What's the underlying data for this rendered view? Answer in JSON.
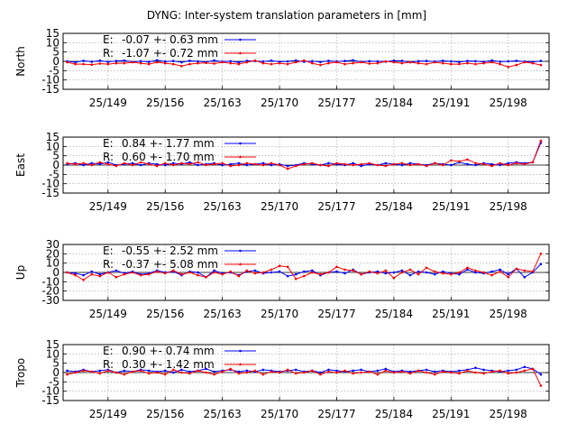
{
  "title": "DYNG: Inter-system translation parameters in [mm]",
  "colors": {
    "E": "#0000ff",
    "R": "#ff0000",
    "axis": "#000000",
    "grid": "#a0a0a0"
  },
  "x_ticks": [
    "25/149",
    "25/156",
    "25/163",
    "25/170",
    "25/177",
    "25/184",
    "25/191",
    "25/198"
  ],
  "chart_data": [
    {
      "type": "line",
      "ylabel": "North",
      "x_day_range": [
        143.5,
        203
      ],
      "x_tick_days": [
        149,
        156,
        163,
        170,
        177,
        184,
        191,
        198
      ],
      "x_tick_labels": [
        "25/149",
        "25/156",
        "25/163",
        "25/170",
        "25/177",
        "25/184",
        "25/191",
        "25/198"
      ],
      "ylim": [
        -15,
        15
      ],
      "y_ticks": [
        15,
        10,
        5,
        0,
        -5,
        -10,
        -15
      ],
      "grid": true,
      "legend_position": "top-left",
      "series": [
        {
          "name": "E:",
          "stat": "-0.07 +- 0.63 mm",
          "x": [
            144,
            145,
            146,
            147,
            148,
            149,
            150,
            151,
            152,
            153,
            154,
            155,
            156,
            157,
            158,
            159,
            160,
            161,
            162,
            163,
            164,
            165,
            166,
            167,
            168,
            169,
            170,
            171,
            172,
            173,
            174,
            175,
            176,
            177,
            178,
            179,
            180,
            181,
            182,
            183,
            184,
            185,
            186,
            187,
            188,
            189,
            190,
            191,
            192,
            193,
            194,
            195,
            196,
            197,
            198,
            199,
            200,
            201,
            202
          ],
          "values": [
            0,
            -0.5,
            0.3,
            -0.2,
            0.4,
            -0.3,
            0.2,
            0.5,
            -0.4,
            0.1,
            -0.3,
            0.6,
            -0.1,
            0.2,
            -0.5,
            0.3,
            0,
            -0.4,
            0.5,
            -0.2,
            0.1,
            -0.6,
            0.3,
            0.2,
            -0.1,
            0.4,
            -0.3,
            0,
            0.5,
            -0.2,
            0.1,
            -0.4,
            0.3,
            -0.1,
            0.2,
            0.6,
            -0.3,
            0.1,
            0,
            -0.2,
            0.4,
            0.3,
            -0.5,
            0.1,
            0.2,
            -0.1,
            0.3,
            0,
            -0.4,
            0.2,
            0.1,
            -0.3,
            0.5,
            -0.2,
            0,
            0.3,
            -0.1,
            -0.4,
            0.2
          ]
        },
        {
          "name": "R:",
          "stat": "-1.07 +- 0.72 mm",
          "x": [
            144,
            145,
            146,
            147,
            148,
            149,
            150,
            151,
            152,
            153,
            154,
            155,
            156,
            157,
            158,
            159,
            160,
            161,
            162,
            163,
            164,
            165,
            166,
            167,
            168,
            169,
            170,
            171,
            172,
            173,
            174,
            175,
            176,
            177,
            178,
            179,
            180,
            181,
            182,
            183,
            184,
            185,
            186,
            187,
            188,
            189,
            190,
            191,
            192,
            193,
            194,
            195,
            196,
            197,
            198,
            199,
            200,
            201,
            202
          ],
          "values": [
            -0.5,
            -1.5,
            -1.5,
            -1.8,
            -1.2,
            -1.5,
            -1,
            -1,
            -0.5,
            -1,
            -1.5,
            -0.5,
            -1,
            -1.5,
            -2.5,
            -1.5,
            -1,
            -0.8,
            -1.2,
            -0.5,
            -1,
            -1.5,
            -0.5,
            0.5,
            -1,
            -1.5,
            -1,
            -1.5,
            -0.5,
            0.5,
            -1,
            -2,
            -1,
            -0.5,
            -1.5,
            -1,
            -0.5,
            -1.2,
            -1,
            0,
            -0.5,
            -1,
            -0.5,
            -1,
            -1.5,
            -0.5,
            -1,
            -1.5,
            -1.5,
            -1,
            -1.5,
            -1,
            -0.5,
            -1.5,
            -3,
            -2,
            -0.5,
            -1,
            -2
          ]
        }
      ]
    },
    {
      "type": "line",
      "ylabel": "East",
      "x_day_range": [
        143.5,
        203
      ],
      "x_tick_days": [
        149,
        156,
        163,
        170,
        177,
        184,
        191,
        198
      ],
      "x_tick_labels": [
        "25/149",
        "25/156",
        "25/163",
        "25/170",
        "25/177",
        "25/184",
        "25/191",
        "25/198"
      ],
      "ylim": [
        -15,
        15
      ],
      "y_ticks": [
        15,
        10,
        5,
        0,
        -5,
        -10,
        -15
      ],
      "grid": true,
      "legend_position": "top-left",
      "series": [
        {
          "name": "E:",
          "stat": "0.84 +- 1.77 mm",
          "x": [
            144,
            145,
            146,
            147,
            148,
            149,
            150,
            151,
            152,
            153,
            154,
            155,
            156,
            157,
            158,
            159,
            160,
            161,
            162,
            163,
            164,
            165,
            166,
            167,
            168,
            169,
            170,
            171,
            172,
            173,
            174,
            175,
            176,
            177,
            178,
            179,
            180,
            181,
            182,
            183,
            184,
            185,
            186,
            187,
            188,
            189,
            190,
            191,
            192,
            193,
            194,
            195,
            196,
            197,
            198,
            199,
            200,
            201,
            202
          ],
          "values": [
            0.5,
            1,
            0,
            1,
            0.5,
            1.5,
            0,
            0.5,
            1,
            0,
            1,
            0.5,
            0,
            1,
            0.5,
            1.5,
            0,
            0.5,
            1,
            0,
            0.5,
            1,
            0,
            0.5,
            1,
            0,
            0.5,
            -0.5,
            0,
            1,
            0.5,
            0,
            1,
            0.5,
            0,
            1,
            -0.5,
            0.5,
            0,
            1,
            0.5,
            0,
            1,
            0.5,
            0,
            1,
            0.5,
            0,
            1.5,
            0.5,
            0,
            1,
            0.5,
            0,
            1,
            1.5,
            1,
            1.5,
            12
          ]
        },
        {
          "name": "R:",
          "stat": "0.60 +- 1.70 mm",
          "x": [
            144,
            145,
            146,
            147,
            148,
            149,
            150,
            151,
            152,
            153,
            154,
            155,
            156,
            157,
            158,
            159,
            160,
            161,
            162,
            163,
            164,
            165,
            166,
            167,
            168,
            169,
            170,
            171,
            172,
            173,
            174,
            175,
            176,
            177,
            178,
            179,
            180,
            181,
            182,
            183,
            184,
            185,
            186,
            187,
            188,
            189,
            190,
            191,
            192,
            193,
            194,
            195,
            196,
            197,
            198,
            199,
            200,
            201,
            202
          ],
          "values": [
            1,
            0.5,
            1,
            0,
            1.5,
            0.5,
            -0.5,
            1,
            0,
            1.5,
            0.5,
            -0.5,
            1,
            0,
            1,
            0.5,
            1.5,
            0,
            0.5,
            1,
            -0.5,
            0,
            1,
            0.5,
            0,
            1,
            0,
            -2,
            -0.5,
            0.5,
            1,
            0,
            -0.5,
            1,
            0.5,
            0,
            0.5,
            1,
            0,
            -0.5,
            0.5,
            1,
            0,
            0.5,
            -0.5,
            1,
            0,
            2.5,
            2,
            3,
            1,
            0.5,
            -0.5,
            1,
            0,
            1,
            0.5,
            1.5,
            13
          ]
        }
      ]
    },
    {
      "type": "line",
      "ylabel": "Up",
      "x_day_range": [
        143.5,
        203
      ],
      "x_tick_days": [
        149,
        156,
        163,
        170,
        177,
        184,
        191,
        198
      ],
      "x_tick_labels": [
        "25/149",
        "25/156",
        "25/163",
        "25/170",
        "25/177",
        "25/184",
        "25/191",
        "25/198"
      ],
      "ylim": [
        -30,
        30
      ],
      "y_ticks": [
        30,
        20,
        10,
        0,
        -10,
        -20,
        -30
      ],
      "grid": true,
      "legend_position": "top-left",
      "series": [
        {
          "name": "E:",
          "stat": "-0.55 +- 2.52 mm",
          "x": [
            144,
            145,
            146,
            147,
            148,
            149,
            150,
            151,
            152,
            153,
            154,
            155,
            156,
            157,
            158,
            159,
            160,
            161,
            162,
            163,
            164,
            165,
            166,
            167,
            168,
            169,
            170,
            171,
            172,
            173,
            174,
            175,
            176,
            177,
            178,
            179,
            180,
            181,
            182,
            183,
            184,
            185,
            186,
            187,
            188,
            189,
            190,
            191,
            192,
            193,
            194,
            195,
            196,
            197,
            198,
            199,
            200,
            201,
            202
          ],
          "values": [
            0,
            -1,
            -3,
            1,
            -2,
            0,
            2,
            -1,
            1,
            -2,
            -1,
            2,
            0,
            1,
            -3,
            1,
            0,
            -5,
            2,
            -1,
            0,
            -3,
            1,
            2,
            -1,
            0,
            1,
            -4,
            -2,
            1,
            2,
            -3,
            0,
            1,
            -1,
            3,
            -2,
            0,
            1,
            -1,
            0,
            2,
            -3,
            1,
            0,
            -2,
            1,
            -1,
            -2,
            3,
            0,
            -1,
            1,
            3,
            -2,
            4,
            -5,
            0,
            9
          ]
        },
        {
          "name": "R:",
          "stat": "-0.37 +- 5.08 mm",
          "x": [
            144,
            145,
            146,
            147,
            148,
            149,
            150,
            151,
            152,
            153,
            154,
            155,
            156,
            157,
            158,
            159,
            160,
            161,
            162,
            163,
            164,
            165,
            166,
            167,
            168,
            169,
            170,
            171,
            172,
            173,
            174,
            175,
            176,
            177,
            178,
            179,
            180,
            181,
            182,
            183,
            184,
            185,
            186,
            187,
            188,
            189,
            190,
            191,
            192,
            193,
            194,
            195,
            196,
            197,
            198,
            199,
            200,
            201,
            202
          ],
          "values": [
            0,
            -3,
            -8,
            -2,
            -4,
            0,
            -5,
            -2,
            0,
            -3,
            -2,
            1,
            -1,
            2,
            -2,
            0,
            -3,
            -5,
            0,
            -2,
            1,
            -4,
            2,
            -1,
            0,
            3,
            7,
            6,
            -7,
            -4,
            0,
            -2,
            0,
            6,
            3,
            2,
            -2,
            1,
            -1,
            2,
            -6,
            0,
            3,
            -2,
            5,
            1,
            -1,
            -2,
            0,
            5,
            2,
            0,
            -3,
            1,
            -5,
            4,
            2,
            1,
            20
          ]
        }
      ]
    },
    {
      "type": "line",
      "ylabel": "Tropo",
      "x_day_range": [
        143.5,
        203
      ],
      "x_tick_days": [
        149,
        156,
        163,
        170,
        177,
        184,
        191,
        198
      ],
      "x_tick_labels": [
        "25/149",
        "25/156",
        "25/163",
        "25/170",
        "25/177",
        "25/184",
        "25/191",
        "25/198"
      ],
      "ylim": [
        -15,
        15
      ],
      "y_ticks": [
        15,
        10,
        5,
        0,
        -5,
        -10,
        -15
      ],
      "grid": true,
      "legend_position": "top-left",
      "series": [
        {
          "name": "E:",
          "stat": "0.90 +- 0.74 mm",
          "x": [
            144,
            145,
            146,
            147,
            148,
            149,
            150,
            151,
            152,
            153,
            154,
            155,
            156,
            157,
            158,
            159,
            160,
            161,
            162,
            163,
            164,
            165,
            166,
            167,
            168,
            169,
            170,
            171,
            172,
            173,
            174,
            175,
            176,
            177,
            178,
            179,
            180,
            181,
            182,
            183,
            184,
            185,
            186,
            187,
            188,
            189,
            190,
            191,
            192,
            193,
            194,
            195,
            196,
            197,
            198,
            199,
            200,
            201,
            202
          ],
          "values": [
            1,
            0.5,
            1.5,
            0.5,
            1,
            1.5,
            0,
            1,
            0.5,
            1.5,
            1,
            0.5,
            1,
            0,
            1.5,
            0.5,
            1,
            2,
            0.5,
            1,
            1.5,
            0.5,
            1,
            0.5,
            1.5,
            1,
            0.5,
            1,
            1.5,
            0.5,
            1,
            0,
            1.5,
            1,
            0.5,
            1,
            1.5,
            0.5,
            1,
            2,
            0.5,
            1,
            0.5,
            1,
            1.5,
            0.5,
            1,
            0.5,
            1,
            1.5,
            2.5,
            1.5,
            1,
            0.5,
            1,
            1.5,
            3,
            2,
            -1
          ]
        },
        {
          "name": "R:",
          "stat": "0.30 +- 1.42 mm",
          "x": [
            144,
            145,
            146,
            147,
            148,
            149,
            150,
            151,
            152,
            153,
            154,
            155,
            156,
            157,
            158,
            159,
            160,
            161,
            162,
            163,
            164,
            165,
            166,
            167,
            168,
            169,
            170,
            171,
            172,
            173,
            174,
            175,
            176,
            177,
            178,
            179,
            180,
            181,
            182,
            183,
            184,
            185,
            186,
            187,
            188,
            189,
            190,
            191,
            192,
            193,
            194,
            195,
            196,
            197,
            198,
            199,
            200,
            201,
            202
          ],
          "values": [
            -1,
            0,
            1,
            0.5,
            -0.5,
            1,
            0,
            -1,
            0.5,
            1,
            -0.5,
            0,
            -1,
            1.5,
            0,
            -0.5,
            1,
            0,
            -1,
            0.5,
            2,
            -0.5,
            0,
            1,
            -1,
            0.5,
            0,
            1.5,
            -0.5,
            0,
            1,
            -1,
            0.5,
            0,
            1,
            -0.5,
            0,
            0.5,
            -1,
            1,
            0,
            0.5,
            -0.5,
            1,
            0,
            -1,
            0.5,
            0,
            -0.5,
            1,
            0,
            -0.5,
            0.5,
            1,
            -0.5,
            0,
            1,
            2,
            -7
          ]
        }
      ]
    }
  ]
}
